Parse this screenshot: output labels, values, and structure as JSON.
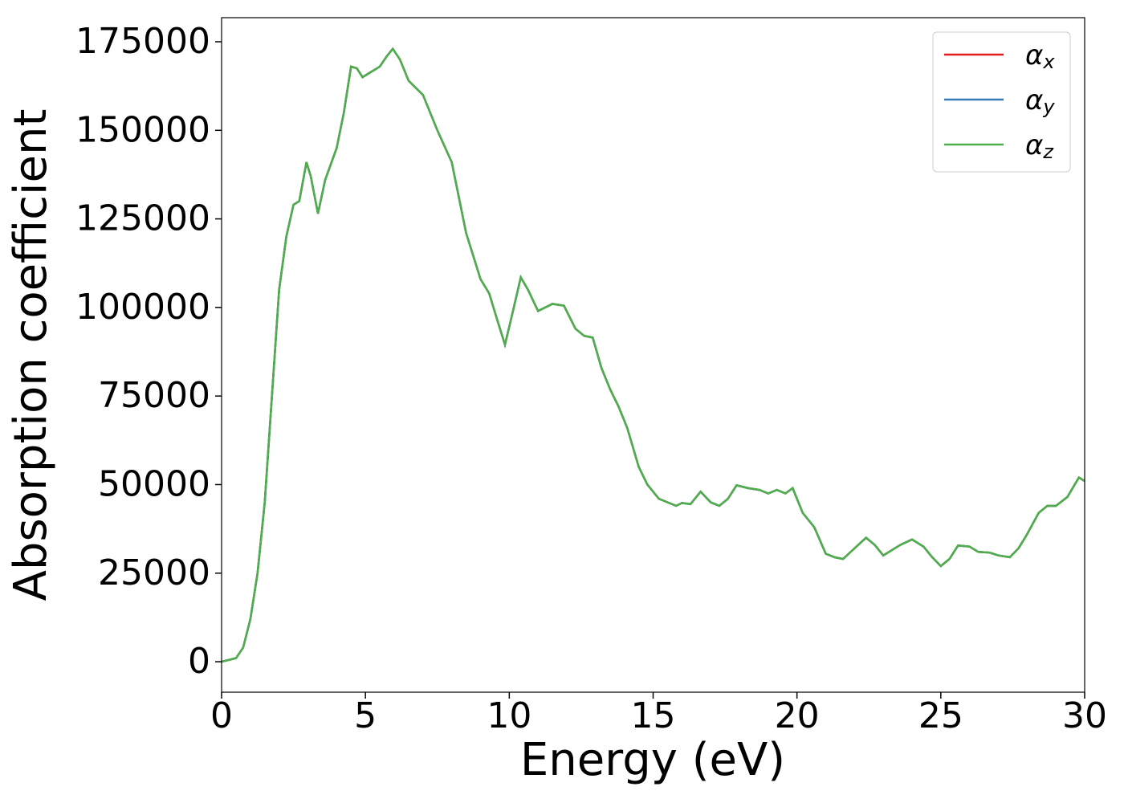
{
  "chart_data": {
    "type": "line",
    "xlabel": "Energy (eV)",
    "ylabel": "Absorption coefficient",
    "x": [
      0,
      0.5,
      0.75,
      1,
      1.25,
      1.5,
      1.75,
      2,
      2.25,
      2.5,
      2.7,
      2.95,
      3.1,
      3.35,
      3.6,
      4,
      4.25,
      4.5,
      4.7,
      4.9,
      5.2,
      5.5,
      5.75,
      5.95,
      6.2,
      6.5,
      7,
      7.5,
      8,
      8.5,
      9,
      9.3,
      9.6,
      9.85,
      10.1,
      10.4,
      10.65,
      11,
      11.5,
      11.9,
      12.3,
      12.6,
      12.9,
      13.2,
      13.5,
      13.8,
      14.1,
      14.5,
      14.8,
      15.2,
      15.5,
      15.8,
      16,
      16.3,
      16.65,
      17,
      17.3,
      17.6,
      17.9,
      18.3,
      18.7,
      19,
      19.3,
      19.6,
      19.85,
      20.2,
      20.6,
      21,
      21.3,
      21.6,
      22,
      22.4,
      22.7,
      23,
      23.3,
      23.6,
      24,
      24.4,
      24.7,
      25,
      25.3,
      25.6,
      26,
      26.3,
      26.7,
      27,
      27.4,
      27.7,
      28,
      28.4,
      28.7,
      29,
      29.4,
      29.8,
      30
    ],
    "series": [
      {
        "name": "αx",
        "color": "#e41a1c",
        "values": [
          0,
          1000,
          4000,
          12000,
          25000,
          45000,
          75000,
          105000,
          120000,
          129000,
          130000,
          141000,
          137000,
          126500,
          136000,
          145000,
          155000,
          168000,
          167500,
          165000,
          166500,
          168000,
          171000,
          173000,
          170000,
          164000,
          160000,
          150000,
          141000,
          121000,
          108000,
          104000,
          96000,
          89500,
          98000,
          108500,
          105000,
          99000,
          101000,
          100500,
          94000,
          92000,
          91500,
          83000,
          77000,
          72000,
          66000,
          55000,
          50000,
          46000,
          45000,
          44000,
          44800,
          44500,
          48000,
          45000,
          44000,
          46000,
          49800,
          49000,
          48500,
          47500,
          48500,
          47500,
          49000,
          42000,
          38000,
          30500,
          29500,
          29000,
          32000,
          35000,
          33000,
          30000,
          31500,
          33000,
          34500,
          32500,
          29500,
          27000,
          29000,
          32800,
          32500,
          31000,
          30800,
          30000,
          29500,
          32000,
          36000,
          42000,
          44000,
          44000,
          46500,
          52000,
          51000
        ]
      },
      {
        "name": "αy",
        "color": "#377eb8",
        "values": [
          0,
          1000,
          4000,
          12000,
          25000,
          45000,
          75000,
          105000,
          120000,
          129000,
          130000,
          141000,
          137000,
          126500,
          136000,
          145000,
          155000,
          168000,
          167500,
          165000,
          166500,
          168000,
          171000,
          173000,
          170000,
          164000,
          160000,
          150000,
          141000,
          121000,
          108000,
          104000,
          96000,
          89500,
          98000,
          108500,
          105000,
          99000,
          101000,
          100500,
          94000,
          92000,
          91500,
          83000,
          77000,
          72000,
          66000,
          55000,
          50000,
          46000,
          45000,
          44000,
          44800,
          44500,
          48000,
          45000,
          44000,
          46000,
          49800,
          49000,
          48500,
          47500,
          48500,
          47500,
          49000,
          42000,
          38000,
          30500,
          29500,
          29000,
          32000,
          35000,
          33000,
          30000,
          31500,
          33000,
          34500,
          32500,
          29500,
          27000,
          29000,
          32800,
          32500,
          31000,
          30800,
          30000,
          29500,
          32000,
          36000,
          42000,
          44000,
          44000,
          46500,
          52000,
          51000
        ]
      },
      {
        "name": "αz",
        "color": "#4daf4a",
        "values": [
          0,
          1000,
          4000,
          12000,
          25000,
          45000,
          75000,
          105000,
          120000,
          129000,
          130000,
          141000,
          137000,
          126500,
          136000,
          145000,
          155000,
          168000,
          167500,
          165000,
          166500,
          168000,
          171000,
          173000,
          170000,
          164000,
          160000,
          150000,
          141000,
          121000,
          108000,
          104000,
          96000,
          89500,
          98000,
          108500,
          105000,
          99000,
          101000,
          100500,
          94000,
          92000,
          91500,
          83000,
          77000,
          72000,
          66000,
          55000,
          50000,
          46000,
          45000,
          44000,
          44800,
          44500,
          48000,
          45000,
          44000,
          46000,
          49800,
          49000,
          48500,
          47500,
          48500,
          47500,
          49000,
          42000,
          38000,
          30500,
          29500,
          29000,
          32000,
          35000,
          33000,
          30000,
          31500,
          33000,
          34500,
          32500,
          29500,
          27000,
          29000,
          32800,
          32500,
          31000,
          30800,
          30000,
          29500,
          32000,
          36000,
          42000,
          44000,
          44000,
          46500,
          52000,
          51000
        ]
      }
    ],
    "xlim": [
      0,
      30
    ],
    "xticks": [
      0,
      5,
      10,
      15,
      20,
      25,
      30
    ],
    "ylim": [
      -8600,
      181800
    ],
    "yticks": [
      0,
      25000,
      50000,
      75000,
      100000,
      125000,
      150000,
      175000
    ],
    "grid": false,
    "legend": "upper right"
  }
}
